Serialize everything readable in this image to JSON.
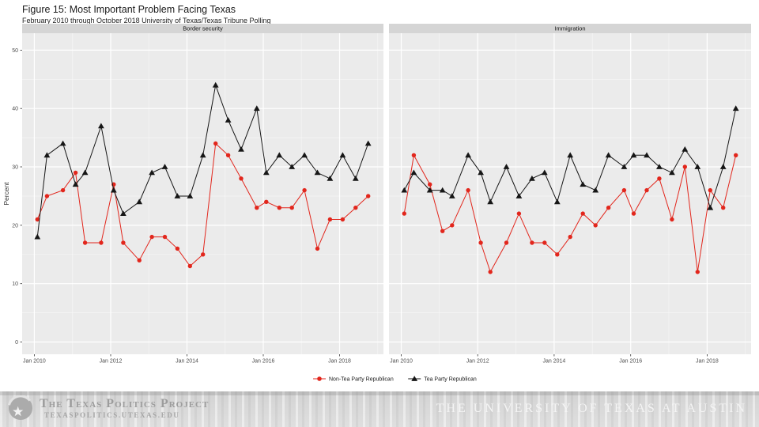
{
  "chart_data": {
    "type": "line",
    "title": "Figure 15: Most Important Problem Facing Texas",
    "subtitle": "February 2010 through October 2018 University of Texas/Texas Tribune Polling",
    "ylabel": "Percent",
    "y_ticks": [
      0,
      10,
      20,
      30,
      40,
      50
    ],
    "ylim": [
      -2.1,
      52.9
    ],
    "x_ticks": [
      2010,
      2012,
      2014,
      2016,
      2018
    ],
    "x_tick_labels": [
      "Jan 2010",
      "Jan 2012",
      "Jan 2014",
      "Jan 2016",
      "Jan 2018"
    ],
    "xlim": [
      2009.68,
      2019.15
    ],
    "grid": "ggplot gray panels, white major gridlines, faint minor gridlines",
    "legend_position": "bottom-center",
    "x_decimal_years": [
      2010.08,
      2010.33,
      2010.75,
      2011.08,
      2011.33,
      2011.75,
      2012.08,
      2012.33,
      2012.75,
      2013.08,
      2013.42,
      2013.75,
      2014.08,
      2014.42,
      2014.75,
      2015.08,
      2015.42,
      2015.83,
      2016.08,
      2016.42,
      2016.75,
      2017.08,
      2017.42,
      2017.75,
      2018.08,
      2018.42,
      2018.75
    ],
    "panels": [
      {
        "label": "Border security",
        "series": [
          {
            "name": "Non-Tea Party Republican",
            "marker": "circle",
            "color": "#e2261c",
            "values": [
              21,
              25,
              26,
              29,
              17,
              17,
              27,
              17,
              14,
              18,
              18,
              16,
              13,
              15,
              34,
              32,
              28,
              23,
              24,
              23,
              23,
              26,
              16,
              21,
              21,
              23,
              25
            ]
          },
          {
            "name": "Tea Party Republican",
            "marker": "triangle",
            "color": "#161616",
            "values": [
              18,
              32,
              34,
              27,
              29,
              37,
              26,
              22,
              24,
              29,
              30,
              25,
              25,
              32,
              44,
              38,
              33,
              40,
              29,
              32,
              30,
              32,
              29,
              28,
              32,
              28,
              34
            ]
          }
        ]
      },
      {
        "label": "Immigration",
        "series": [
          {
            "name": "Non-Tea Party Republican",
            "marker": "circle",
            "color": "#e2261c",
            "values": [
              22,
              32,
              27,
              19,
              20,
              26,
              17,
              12,
              17,
              22,
              17,
              17,
              15,
              18,
              22,
              20,
              23,
              26,
              22,
              26,
              28,
              21,
              30,
              12,
              26,
              23,
              32
            ]
          },
          {
            "name": "Tea Party Republican",
            "marker": "triangle",
            "color": "#161616",
            "values": [
              26,
              29,
              26,
              26,
              25,
              32,
              29,
              24,
              30,
              25,
              28,
              29,
              24,
              32,
              27,
              26,
              32,
              30,
              32,
              32,
              30,
              29,
              33,
              30,
              23,
              30,
              40
            ]
          }
        ]
      }
    ]
  },
  "footer": {
    "project_title": "The Texas Politics Project",
    "project_url": "TEXASPOLITICS.UTEXAS.EDU",
    "university": "THE UNIVERSITY OF TEXAS AT AUSTIN"
  }
}
